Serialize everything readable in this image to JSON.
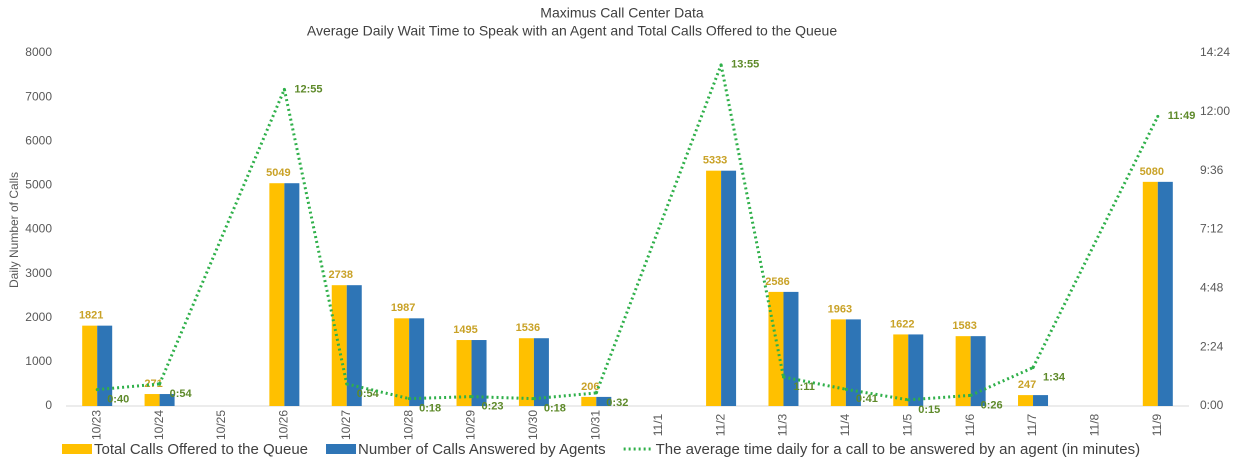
{
  "chart_data": {
    "type": "bar",
    "title": "Maximus Call Center Data",
    "subtitle": "Average Daily Wait Time to Speak with an Agent and Total Calls Offered to the Queue",
    "y_label": "Daily Number of Calls",
    "categories": [
      "10/23",
      "10/24",
      "10/25",
      "10/26",
      "10/27",
      "10/28",
      "10/29",
      "10/30",
      "10/31",
      "11/1",
      "11/2",
      "11/3",
      "11/4",
      "11/5",
      "11/6",
      "11/7",
      "11/8",
      "11/9"
    ],
    "series": [
      {
        "name": "Total Calls Offered to the Queue",
        "color": "#ffc000",
        "values": [
          1821,
          271,
          null,
          5049,
          2738,
          1987,
          1495,
          1536,
          206,
          null,
          5333,
          2586,
          1963,
          1622,
          1583,
          247,
          null,
          5080
        ]
      },
      {
        "name": "Number of Calls Answered by Agents",
        "color": "#2e75b6",
        "values": [
          1821,
          271,
          null,
          5049,
          2738,
          1987,
          1495,
          1536,
          206,
          null,
          5333,
          2586,
          1963,
          1622,
          1583,
          247,
          null,
          5080
        ]
      },
      {
        "name": "The average time daily for a call to be answered by an agent (in minutes)",
        "color": "#2fb04a",
        "type": "line",
        "axis": "y2",
        "values": [
          0.667,
          0.9,
          null,
          12.917,
          0.9,
          0.3,
          0.383,
          0.3,
          0.533,
          null,
          13.917,
          1.183,
          0.683,
          0.25,
          0.433,
          1.567,
          null,
          11.817
        ],
        "value_labels": [
          "0:40",
          "0:54",
          null,
          "12:55",
          "0:54",
          "0:18",
          "0:23",
          "0:18",
          "0:32",
          null,
          "13:55",
          "1:11",
          "0:41",
          "0:15",
          "0:26",
          "1:34",
          null,
          "11:49"
        ]
      }
    ],
    "ylim": [
      0,
      8000
    ],
    "yticks": [
      0,
      1000,
      2000,
      3000,
      4000,
      5000,
      6000,
      7000,
      8000
    ],
    "y2lim": [
      0,
      14.4
    ],
    "y2ticks": [
      {
        "value": 0,
        "label": "0:00"
      },
      {
        "value": 2.4,
        "label": "2:24"
      },
      {
        "value": 4.8,
        "label": "4:48"
      },
      {
        "value": 7.2,
        "label": "7:12"
      },
      {
        "value": 9.6,
        "label": "9:36"
      },
      {
        "value": 12,
        "label": "12:00"
      },
      {
        "value": 14.4,
        "label": "14:24"
      }
    ],
    "legend": "bottom"
  }
}
